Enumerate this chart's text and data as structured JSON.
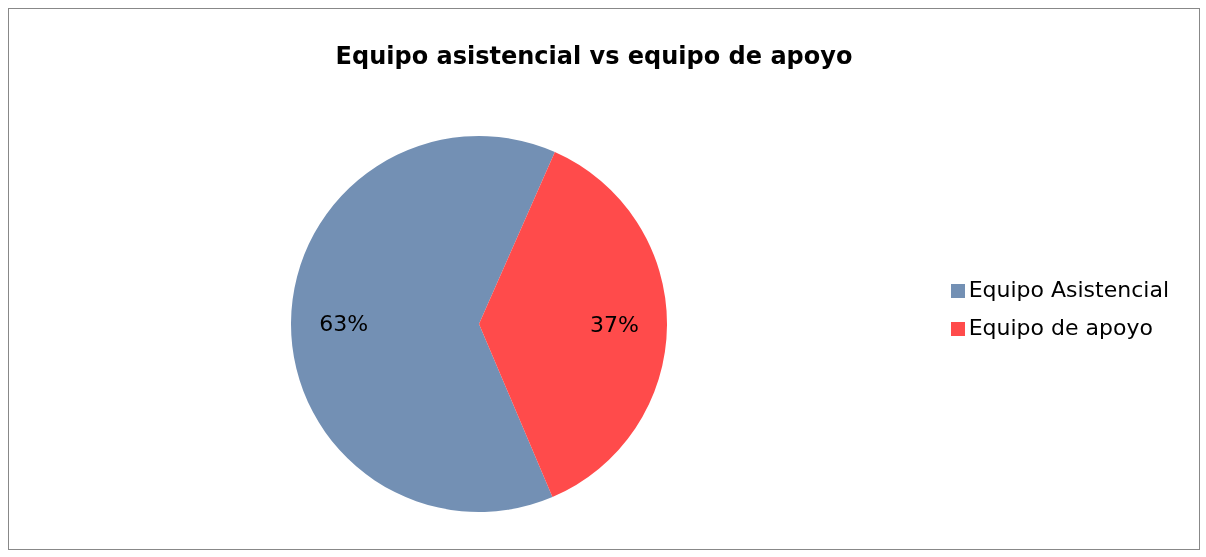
{
  "chart_data": {
    "type": "pie",
    "title": "Equipo asistencial vs equipo de apoyo",
    "categories": [
      "Equipo Asistencial",
      "Equipo de apoyo"
    ],
    "values": [
      63,
      37
    ],
    "value_labels": [
      "63%",
      "37%"
    ],
    "colors": [
      "#7390b4",
      "#ff4b4b"
    ],
    "legend": "right"
  }
}
